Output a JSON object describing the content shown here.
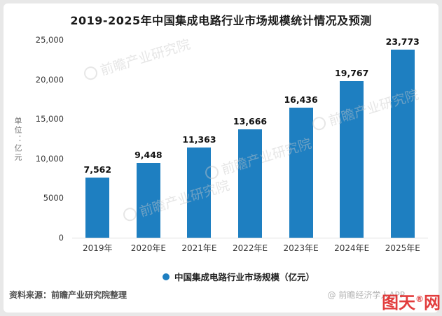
{
  "title": "2019-2025年中国集成电路行业市场规模统计情况及预测",
  "chart_data": {
    "type": "bar",
    "categories": [
      "2019年",
      "2020年E",
      "2021年E",
      "2022年E",
      "2023年E",
      "2024年E",
      "2025年E"
    ],
    "values": [
      7562,
      9448,
      11363,
      13666,
      16436,
      19767,
      23773
    ],
    "value_labels": [
      "7,562",
      "9,448",
      "11,363",
      "13,666",
      "16,436",
      "19,767",
      "23,773"
    ],
    "title": "2019-2025年中国集成电路行业市场规模统计情况及预测",
    "xlabel": "",
    "ylabel": "单位：亿元",
    "ylim": [
      0,
      25000
    ],
    "yticks": [
      {
        "label": "0",
        "value": 0
      },
      {
        "label": "5000",
        "value": 5000
      },
      {
        "label": "10,000",
        "value": 10000
      },
      {
        "label": "15,000",
        "value": 15000
      },
      {
        "label": "20,000",
        "value": 20000
      },
      {
        "label": "25,000",
        "value": 25000
      }
    ],
    "grid": false,
    "legend_position": "bottom",
    "legend": "中国集成电路行业市场规模（亿元）",
    "bar_color": "#1E7FC1"
  },
  "footer": {
    "source": "资料来源：前瞻产业研究院整理",
    "credit": "@ 前瞻经济学人APP"
  },
  "watermark": {
    "brand": "前瞻产业研究院",
    "stamp_left": "图天",
    "stamp_reg": "®",
    "stamp_right": "网"
  }
}
